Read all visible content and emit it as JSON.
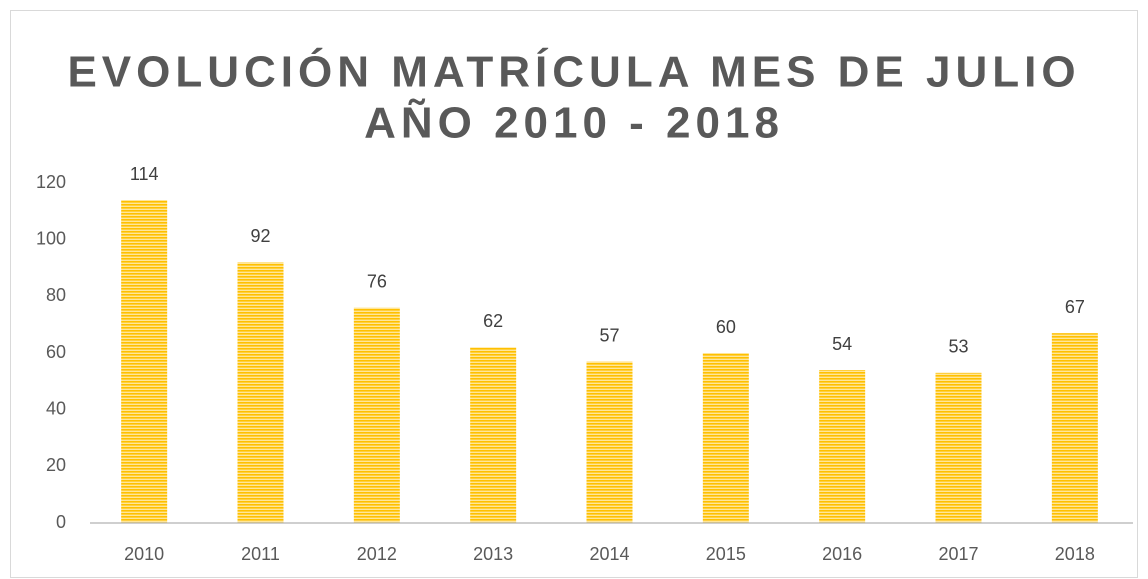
{
  "chart_data": {
    "type": "bar",
    "title": [
      "EVOLUCIÓN MATRÍCULA MES DE JULIO",
      "AÑO 2010 - 2018"
    ],
    "categories": [
      "2010",
      "2011",
      "2012",
      "2013",
      "2014",
      "2015",
      "2016",
      "2017",
      "2018"
    ],
    "values": [
      114,
      92,
      76,
      62,
      57,
      60,
      54,
      53,
      67
    ],
    "color": "#FFC000",
    "ylim": [
      0,
      120
    ],
    "yticks": [
      0,
      20,
      40,
      60,
      80,
      100,
      120
    ],
    "grid": false
  }
}
